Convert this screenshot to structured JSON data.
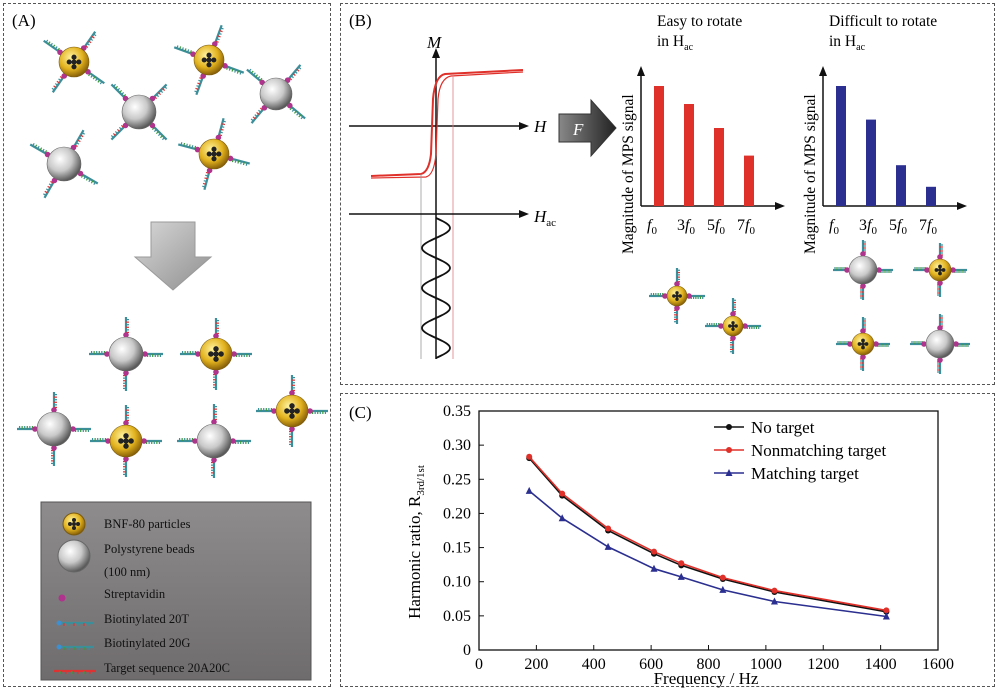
{
  "panelA": {
    "label": "(A)",
    "legend": {
      "bnf": "BNF-80 particles",
      "ps_line1": "Polystyrene beads",
      "ps_line2": "(100 nm)",
      "strep": "Streptavidin",
      "b20t": "Biotinylated 20T",
      "b20g": "Biotinylated 20G",
      "target": "Target sequence 20A20C"
    }
  },
  "panelB": {
    "label": "(B)",
    "axis_M": "M",
    "axis_H": "H",
    "axis_Hac": "H",
    "axis_Hac_sub": "ac",
    "arrow_label": "F",
    "easy_title_line1": "Easy to rotate",
    "easy_title_line2": "in H",
    "easy_title_sub": "ac",
    "difficult_title_line1": "Difficult to rotate",
    "difficult_title_line2": "in H",
    "difficult_title_sub": "ac",
    "mps_ylabel": "Magnitude of MPS signal",
    "harmonic_ticks": [
      "f0",
      "3f0",
      "5f0",
      "7f0"
    ],
    "easy_bars": [
      1.0,
      0.85,
      0.65,
      0.42
    ],
    "difficult_bars": [
      1.0,
      0.72,
      0.34,
      0.16
    ],
    "colors": {
      "easy": "#e0302a",
      "difficult": "#2b2f8f",
      "hysteresis": "#e0302a"
    }
  },
  "panelC": {
    "label": "(C)"
  },
  "chart_data": {
    "type": "line",
    "xlabel": "Frequency / Hz",
    "ylabel": "Harmonic ratio, R",
    "ylabel_sub": "3rd/1st",
    "xlim": [
      0,
      1600
    ],
    "ylim": [
      0,
      0.35
    ],
    "xticks": [
      0,
      200,
      400,
      600,
      800,
      1000,
      1200,
      1400,
      1600
    ],
    "yticks": [
      0,
      0.05,
      0.1,
      0.15,
      0.2,
      0.25,
      0.3,
      0.35
    ],
    "ytick_labels": [
      "0",
      "0.05",
      "0.10",
      "0.15",
      "0.20",
      "0.25",
      "0.30",
      "0.35"
    ],
    "xtick_labels": [
      "0",
      "200",
      "400",
      "600",
      "800",
      "1000",
      "1200",
      "1400",
      "1600"
    ],
    "legend_position": "top-right",
    "x": [
      175,
      290,
      450,
      610,
      705,
      850,
      1030,
      1420
    ],
    "series": [
      {
        "name": "No target",
        "color": "#111111",
        "marker": "circle",
        "values": [
          0.281,
          0.226,
          0.175,
          0.141,
          0.124,
          0.104,
          0.085,
          0.056
        ]
      },
      {
        "name": "Nonmatching target",
        "color": "#e0302a",
        "marker": "circle",
        "values": [
          0.283,
          0.229,
          0.178,
          0.144,
          0.127,
          0.106,
          0.087,
          0.058
        ]
      },
      {
        "name": "Matching target",
        "color": "#2b2f8f",
        "marker": "triangle",
        "values": [
          0.233,
          0.193,
          0.151,
          0.119,
          0.107,
          0.088,
          0.071,
          0.049
        ]
      }
    ]
  }
}
